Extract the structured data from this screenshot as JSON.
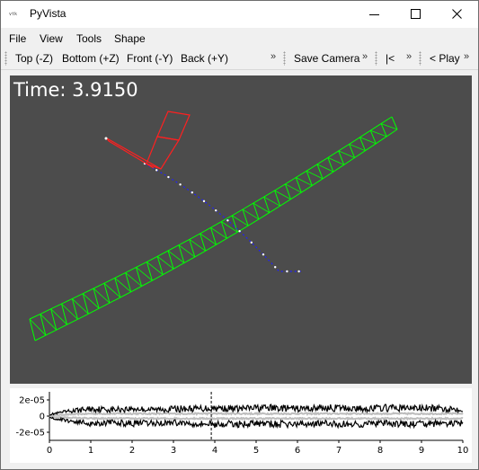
{
  "window": {
    "title": "PyVista",
    "app_icon_text": "vtk",
    "minimize_icon": "minimize-icon",
    "maximize_icon": "maximize-icon",
    "close_icon": "close-icon"
  },
  "menubar": {
    "items": [
      "File",
      "View",
      "Tools",
      "Shape"
    ]
  },
  "toolbar": {
    "views": [
      "Top (-Z)",
      "Bottom (+Z)",
      "Front (-Y)",
      "Back (+Y)"
    ],
    "save_camera": "Save Camera",
    "rewind": "|<",
    "play": "< Play",
    "overflow_icon": "chevron-double-right-icon"
  },
  "viewport": {
    "time_label": "Time: 3.9150",
    "background": "#4c4c4c",
    "blade_color": "#00ff00",
    "tower_color": "#ff2020",
    "path_color": "#2020ff"
  },
  "chart_data": {
    "type": "line",
    "title": "",
    "xlabel": "",
    "ylabel": "",
    "xlim": [
      0,
      10
    ],
    "ylim": [
      -3e-05,
      3e-05
    ],
    "x_ticks": [
      "0",
      "1",
      "2",
      "3",
      "4",
      "5",
      "6",
      "7",
      "8",
      "9",
      "10"
    ],
    "y_ticks": [
      "2e-05",
      "0",
      "-2e-05"
    ],
    "series": [
      {
        "color": "#000000",
        "x": [
          0,
          0.5,
          1,
          1.5,
          2,
          2.5,
          3,
          3.5,
          4,
          4.5,
          5,
          5.5,
          6,
          6.5,
          7,
          7.5,
          8,
          8.5,
          9,
          9.5,
          10
        ],
        "upper": [
          2e-06,
          6e-06,
          9e-06,
          8e-06,
          9e-06,
          8e-06,
          9e-06,
          9e-06,
          1e-05,
          9e-06,
          1e-05,
          1e-05,
          9e-06,
          1e-05,
          1e-05,
          9e-06,
          1e-05,
          1e-05,
          1e-05,
          9e-06,
          9e-06
        ],
        "lower": [
          -2e-06,
          -6e-06,
          -9e-06,
          -8e-06,
          -9e-06,
          -9e-06,
          -8e-06,
          -9e-06,
          -1e-05,
          -1e-05,
          -9e-06,
          -1e-05,
          -1e-05,
          -9e-06,
          -1e-05,
          -1e-05,
          -9e-06,
          -1e-05,
          -1e-05,
          -9e-06,
          -9e-06
        ]
      },
      {
        "color": "#bdbdbd",
        "x": [
          0,
          1,
          2,
          3,
          4,
          5,
          6,
          7,
          8,
          9,
          10
        ],
        "upper": [
          1e-06,
          3e-06,
          3e-06,
          3e-06,
          3e-06,
          3e-06,
          3e-06,
          3e-06,
          3e-06,
          3e-06,
          3e-06
        ],
        "lower": [
          -1e-06,
          -3e-06,
          -3e-06,
          -3e-06,
          -3e-06,
          -3e-06,
          -3e-06,
          -3e-06,
          -3e-06,
          -3e-06,
          -3e-06
        ]
      }
    ],
    "marker_x": 3.915
  }
}
